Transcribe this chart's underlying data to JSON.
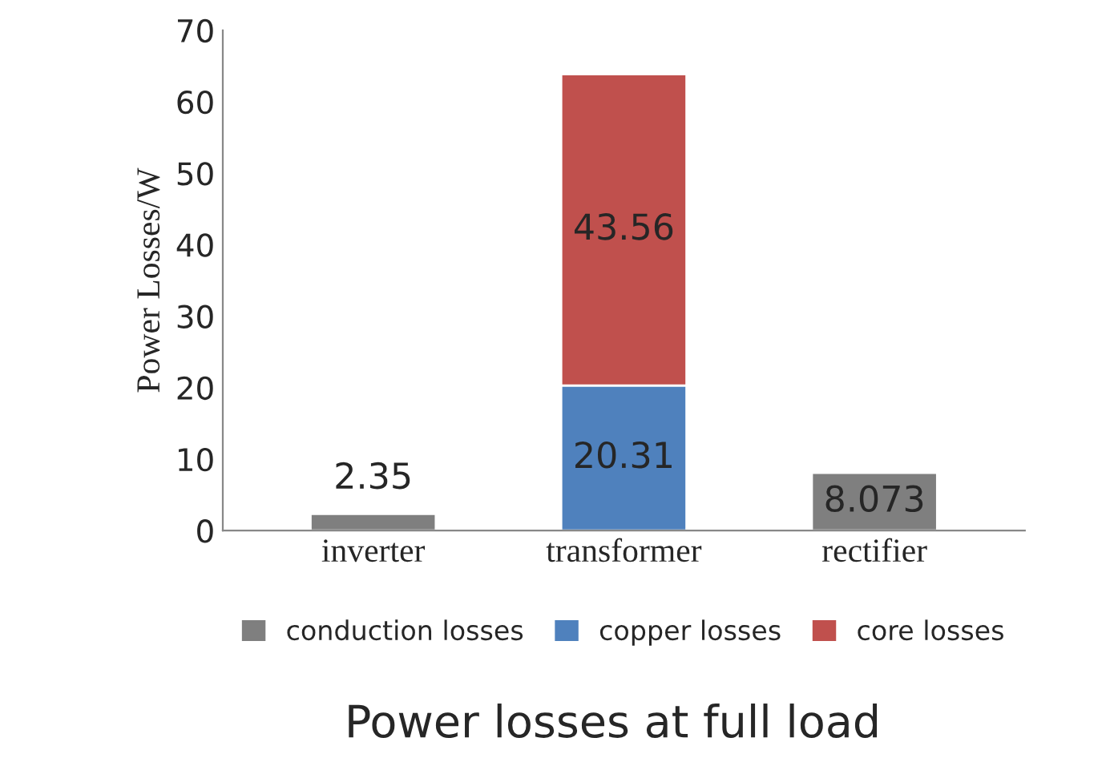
{
  "chart_data": {
    "type": "bar",
    "title": "Power losses at full load",
    "ylabel": "Power Losses/W",
    "categories": [
      "inverter",
      "transformer",
      "rectifier"
    ],
    "series": [
      {
        "name": "conduction losses",
        "color": "#7f7f7f",
        "values": [
          2.35,
          null,
          8.073
        ]
      },
      {
        "name": "copper losses",
        "color": "#4f81bd",
        "values": [
          null,
          20.31,
          null
        ]
      },
      {
        "name": "core losses",
        "color": "#c0504d",
        "values": [
          null,
          43.56,
          null
        ]
      }
    ],
    "stacked": true,
    "ylim": [
      0,
      70
    ],
    "yticks": [
      0,
      10,
      20,
      30,
      40,
      50,
      60,
      70
    ],
    "data_labels": true,
    "grid": false,
    "legend": "bottom"
  }
}
